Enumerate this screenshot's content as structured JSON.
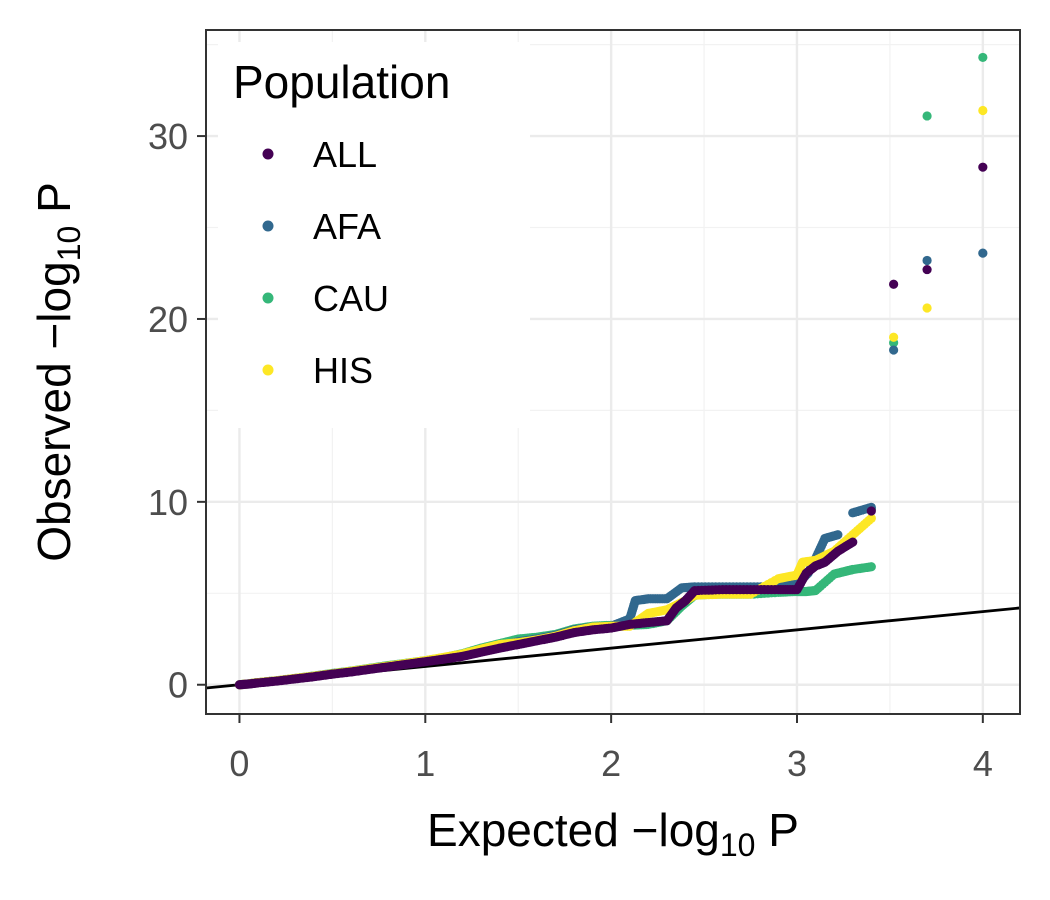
{
  "chart_data": {
    "type": "scatter",
    "title": "",
    "xlabel": {
      "main": "Expected −log",
      "sub": "10",
      "tail": " P"
    },
    "ylabel": {
      "main": "Observed −log",
      "sub": "10",
      "tail": " P"
    },
    "xlim": [
      -0.18,
      4.2
    ],
    "ylim": [
      -1.6,
      35.8
    ],
    "x_ticks": [
      0,
      1,
      2,
      3,
      4
    ],
    "x_tick_labels": [
      "0",
      "1",
      "2",
      "3",
      "4"
    ],
    "y_ticks": [
      0,
      10,
      20,
      30
    ],
    "y_tick_labels": [
      "0",
      "10",
      "20",
      "30"
    ],
    "grid": true,
    "reference_line": {
      "slope": 1,
      "intercept": 0,
      "color": "#000000"
    },
    "legend": {
      "title": "Population",
      "position": "top-left",
      "entries": [
        "ALL",
        "AFA",
        "CAU",
        "HIS"
      ]
    },
    "series": [
      {
        "name": "CAU",
        "color": "#35b779",
        "points": [
          [
            0,
            0
          ],
          [
            0.05,
            0.05
          ],
          [
            0.1,
            0.12
          ],
          [
            0.2,
            0.22
          ],
          [
            0.3,
            0.35
          ],
          [
            0.4,
            0.48
          ],
          [
            0.5,
            0.62
          ],
          [
            0.6,
            0.75
          ],
          [
            0.7,
            0.9
          ],
          [
            0.8,
            1.05
          ],
          [
            0.9,
            1.18
          ],
          [
            1.0,
            1.32
          ],
          [
            1.1,
            1.48
          ],
          [
            1.2,
            1.7
          ],
          [
            1.3,
            2.0
          ],
          [
            1.4,
            2.25
          ],
          [
            1.5,
            2.5
          ],
          [
            1.6,
            2.6
          ],
          [
            1.7,
            2.75
          ],
          [
            1.8,
            3.05
          ],
          [
            1.9,
            3.2
          ],
          [
            2.0,
            3.25
          ],
          [
            2.1,
            3.25
          ],
          [
            2.2,
            3.3
          ],
          [
            2.3,
            3.5
          ],
          [
            2.38,
            4.3
          ],
          [
            2.45,
            4.9
          ],
          [
            2.55,
            4.95
          ],
          [
            2.65,
            4.95
          ],
          [
            2.75,
            4.95
          ],
          [
            2.9,
            5.05
          ],
          [
            3.0,
            5.1
          ],
          [
            3.05,
            5.1
          ],
          [
            3.1,
            5.15
          ],
          [
            3.2,
            6.05
          ],
          [
            3.26,
            6.2
          ],
          [
            3.3,
            6.3
          ],
          [
            3.4,
            6.45
          ],
          [
            3.4,
            9.6
          ],
          [
            3.52,
            18.7
          ],
          [
            3.7,
            31.1
          ],
          [
            4.0,
            34.3
          ]
        ]
      },
      {
        "name": "AFA",
        "color": "#31688e",
        "points": [
          [
            0,
            0
          ],
          [
            0.05,
            0.05
          ],
          [
            0.1,
            0.12
          ],
          [
            0.2,
            0.22
          ],
          [
            0.3,
            0.34
          ],
          [
            0.4,
            0.46
          ],
          [
            0.5,
            0.6
          ],
          [
            0.6,
            0.72
          ],
          [
            0.7,
            0.86
          ],
          [
            0.8,
            1.0
          ],
          [
            0.9,
            1.15
          ],
          [
            1.0,
            1.3
          ],
          [
            1.1,
            1.45
          ],
          [
            1.2,
            1.62
          ],
          [
            1.3,
            1.88
          ],
          [
            1.4,
            2.12
          ],
          [
            1.5,
            2.35
          ],
          [
            1.6,
            2.5
          ],
          [
            1.7,
            2.7
          ],
          [
            1.8,
            3.0
          ],
          [
            1.9,
            3.15
          ],
          [
            2.0,
            3.2
          ],
          [
            2.1,
            3.6
          ],
          [
            2.13,
            4.6
          ],
          [
            2.2,
            4.7
          ],
          [
            2.3,
            4.7
          ],
          [
            2.38,
            5.3
          ],
          [
            2.45,
            5.35
          ],
          [
            2.6,
            5.35
          ],
          [
            2.75,
            5.35
          ],
          [
            2.9,
            5.35
          ],
          [
            3.0,
            5.5
          ],
          [
            3.06,
            6.1
          ],
          [
            3.1,
            6.9
          ],
          [
            3.15,
            8.0
          ],
          [
            3.22,
            8.2
          ],
          [
            3.3,
            9.4
          ],
          [
            3.4,
            9.7
          ],
          [
            3.52,
            18.3
          ],
          [
            3.7,
            23.2
          ],
          [
            4.0,
            23.6
          ]
        ]
      },
      {
        "name": "HIS",
        "color": "#fde725",
        "points": [
          [
            0,
            0
          ],
          [
            0.05,
            0.05
          ],
          [
            0.1,
            0.12
          ],
          [
            0.2,
            0.22
          ],
          [
            0.3,
            0.35
          ],
          [
            0.4,
            0.47
          ],
          [
            0.5,
            0.6
          ],
          [
            0.6,
            0.74
          ],
          [
            0.7,
            0.88
          ],
          [
            0.8,
            1.02
          ],
          [
            0.9,
            1.17
          ],
          [
            1.0,
            1.32
          ],
          [
            1.1,
            1.5
          ],
          [
            1.2,
            1.68
          ],
          [
            1.3,
            1.95
          ],
          [
            1.4,
            2.2
          ],
          [
            1.5,
            2.3
          ],
          [
            1.6,
            2.45
          ],
          [
            1.7,
            2.65
          ],
          [
            1.8,
            2.95
          ],
          [
            1.9,
            3.15
          ],
          [
            2.0,
            3.2
          ],
          [
            2.1,
            3.2
          ],
          [
            2.2,
            3.9
          ],
          [
            2.3,
            4.1
          ],
          [
            2.4,
            4.6
          ],
          [
            2.45,
            4.9
          ],
          [
            2.6,
            4.95
          ],
          [
            2.75,
            4.95
          ],
          [
            2.9,
            5.8
          ],
          [
            3.0,
            6.0
          ],
          [
            3.03,
            6.7
          ],
          [
            3.1,
            6.8
          ],
          [
            3.2,
            7.3
          ],
          [
            3.3,
            8.2
          ],
          [
            3.4,
            9.1
          ],
          [
            3.52,
            19.0
          ],
          [
            3.7,
            20.6
          ],
          [
            4.0,
            31.4
          ]
        ]
      },
      {
        "name": "ALL",
        "color": "#440154",
        "points": [
          [
            0,
            0
          ],
          [
            0.05,
            0.04
          ],
          [
            0.1,
            0.1
          ],
          [
            0.2,
            0.2
          ],
          [
            0.3,
            0.32
          ],
          [
            0.4,
            0.44
          ],
          [
            0.5,
            0.58
          ],
          [
            0.6,
            0.7
          ],
          [
            0.7,
            0.84
          ],
          [
            0.8,
            0.98
          ],
          [
            0.9,
            1.12
          ],
          [
            1.0,
            1.26
          ],
          [
            1.1,
            1.4
          ],
          [
            1.2,
            1.55
          ],
          [
            1.3,
            1.78
          ],
          [
            1.4,
            2.0
          ],
          [
            1.5,
            2.2
          ],
          [
            1.6,
            2.4
          ],
          [
            1.7,
            2.6
          ],
          [
            1.8,
            2.85
          ],
          [
            1.9,
            3.0
          ],
          [
            2.0,
            3.1
          ],
          [
            2.1,
            3.3
          ],
          [
            2.2,
            3.4
          ],
          [
            2.3,
            3.5
          ],
          [
            2.35,
            4.2
          ],
          [
            2.4,
            4.6
          ],
          [
            2.45,
            5.15
          ],
          [
            2.6,
            5.2
          ],
          [
            2.75,
            5.2
          ],
          [
            2.9,
            5.2
          ],
          [
            3.0,
            5.2
          ],
          [
            3.05,
            6.1
          ],
          [
            3.1,
            6.5
          ],
          [
            3.15,
            6.7
          ],
          [
            3.22,
            7.3
          ],
          [
            3.3,
            7.8
          ],
          [
            3.4,
            9.5
          ],
          [
            3.52,
            21.9
          ],
          [
            3.7,
            22.7
          ],
          [
            4.0,
            28.3
          ]
        ]
      }
    ]
  }
}
